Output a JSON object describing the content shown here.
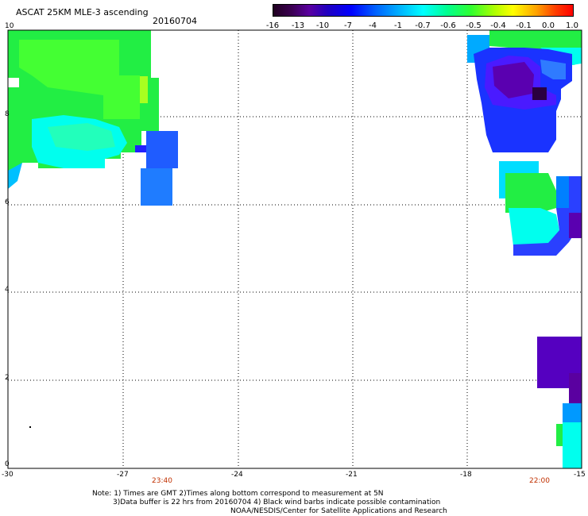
{
  "header": {
    "title": "ASCAT 25KM MLE-3 ascending",
    "date": "20160704"
  },
  "colorbar": {
    "ticks": [
      "-16",
      "-13",
      "-10",
      "-7",
      "-4",
      "-1",
      "-0.7",
      "-0.6",
      "-0.5",
      "-0.4",
      "-0.1",
      "0.0",
      "1.0"
    ]
  },
  "axes": {
    "x_ticks": [
      "-30",
      "-27",
      "-24",
      "-21",
      "-18",
      "-15"
    ],
    "y_ticks": [
      "10",
      "8",
      "6",
      "4",
      "2",
      "0"
    ],
    "xlim": [
      -30,
      -15
    ],
    "ylim": [
      0,
      10
    ]
  },
  "times": [
    "23:40",
    "22:00"
  ],
  "notes": {
    "line1": "Note: 1) Times are GMT 2)Times along bottom correspond to measurement at 5N",
    "line2": "3)Data buffer is 22 hrs from 20160704 4) Black wind barbs indicate possible contamination",
    "line3": "NOAA/NESDIS/Center for Satellite Applications and Research"
  },
  "colors": {
    "green": "#22ee44",
    "cyan": "#00ffee",
    "blue": "#1a33ff",
    "purple": "#5a00b0"
  }
}
